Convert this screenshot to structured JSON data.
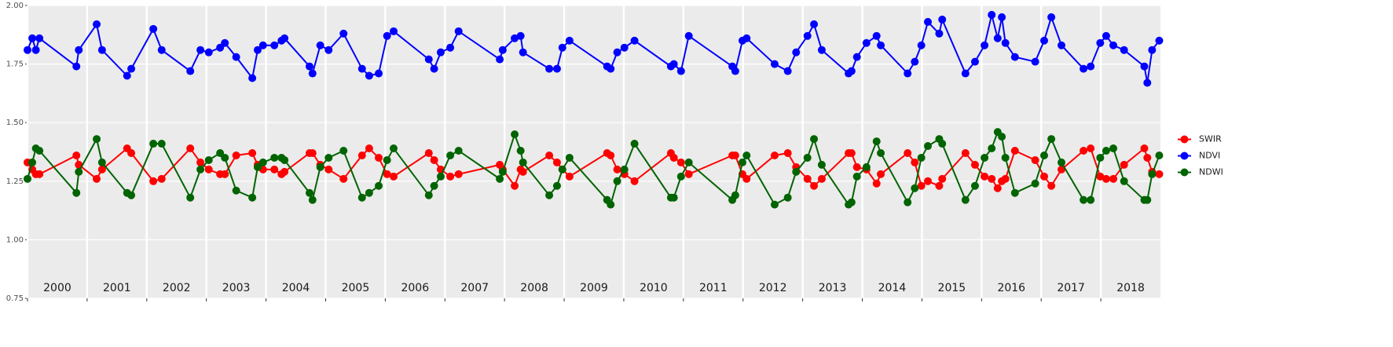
{
  "chart_data": {
    "type": "line",
    "x": [
      2000.0,
      2000.08,
      2000.14,
      2000.2,
      2000.82,
      2000.86,
      2001.16,
      2001.25,
      2001.67,
      2001.74,
      2002.11,
      2002.25,
      2002.73,
      2002.9,
      2003.04,
      2003.23,
      2003.31,
      2003.5,
      2003.77,
      2003.86,
      2003.95,
      2004.14,
      2004.26,
      2004.31,
      2004.73,
      2004.78,
      2004.91,
      2005.05,
      2005.3,
      2005.61,
      2005.73,
      2005.89,
      2006.03,
      2006.14,
      2006.73,
      2006.82,
      2006.93,
      2007.09,
      2007.23,
      2007.92,
      2007.97,
      2008.17,
      2008.27,
      2008.31,
      2008.75,
      2008.88,
      2008.97,
      2009.09,
      2009.72,
      2009.78,
      2009.89,
      2010.01,
      2010.18,
      2010.79,
      2010.84,
      2010.96,
      2011.09,
      2011.82,
      2011.87,
      2011.99,
      2012.06,
      2012.53,
      2012.75,
      2012.89,
      2013.08,
      2013.19,
      2013.32,
      2013.77,
      2013.82,
      2013.91,
      2014.07,
      2014.24,
      2014.31,
      2014.76,
      2014.88,
      2014.99,
      2015.1,
      2015.29,
      2015.34,
      2015.73,
      2015.89,
      2016.05,
      2016.17,
      2016.27,
      2016.34,
      2016.4,
      2016.56,
      2016.9,
      2017.05,
      2017.17,
      2017.34,
      2017.71,
      2017.83,
      2017.99,
      2018.09,
      2018.21,
      2018.39,
      2018.73,
      2018.78,
      2018.86,
      2018.98
    ],
    "series": [
      {
        "name": "SWIR",
        "color": "#ff0000",
        "values": [
          1.33,
          1.3,
          1.28,
          1.28,
          1.36,
          1.32,
          1.26,
          1.3,
          1.39,
          1.37,
          1.25,
          1.26,
          1.39,
          1.33,
          1.3,
          1.28,
          1.28,
          1.36,
          1.37,
          1.32,
          1.3,
          1.3,
          1.28,
          1.29,
          1.37,
          1.37,
          1.32,
          1.3,
          1.26,
          1.36,
          1.39,
          1.35,
          1.28,
          1.27,
          1.37,
          1.34,
          1.3,
          1.27,
          1.28,
          1.32,
          1.3,
          1.23,
          1.3,
          1.29,
          1.36,
          1.33,
          1.3,
          1.27,
          1.37,
          1.36,
          1.3,
          1.28,
          1.25,
          1.37,
          1.35,
          1.33,
          1.28,
          1.36,
          1.36,
          1.28,
          1.26,
          1.36,
          1.37,
          1.31,
          1.26,
          1.23,
          1.26,
          1.37,
          1.37,
          1.31,
          1.3,
          1.24,
          1.28,
          1.37,
          1.33,
          1.23,
          1.25,
          1.23,
          1.26,
          1.37,
          1.32,
          1.27,
          1.26,
          1.22,
          1.25,
          1.26,
          1.38,
          1.34,
          1.27,
          1.23,
          1.3,
          1.38,
          1.39,
          1.27,
          1.26,
          1.26,
          1.32,
          1.39,
          1.35,
          1.29,
          1.28
        ]
      },
      {
        "name": "NDVI",
        "color": "#0000ff",
        "values": [
          1.81,
          1.86,
          1.81,
          1.86,
          1.74,
          1.81,
          1.92,
          1.81,
          1.7,
          1.73,
          1.9,
          1.81,
          1.72,
          1.81,
          1.8,
          1.82,
          1.84,
          1.78,
          1.69,
          1.81,
          1.83,
          1.83,
          1.85,
          1.86,
          1.74,
          1.71,
          1.83,
          1.81,
          1.88,
          1.73,
          1.7,
          1.71,
          1.87,
          1.89,
          1.77,
          1.73,
          1.8,
          1.82,
          1.89,
          1.77,
          1.81,
          1.86,
          1.87,
          1.8,
          1.73,
          1.73,
          1.82,
          1.85,
          1.74,
          1.73,
          1.8,
          1.82,
          1.85,
          1.74,
          1.75,
          1.72,
          1.87,
          1.74,
          1.72,
          1.85,
          1.86,
          1.75,
          1.72,
          1.8,
          1.87,
          1.92,
          1.81,
          1.71,
          1.72,
          1.78,
          1.84,
          1.87,
          1.83,
          1.71,
          1.76,
          1.83,
          1.93,
          1.88,
          1.94,
          1.71,
          1.76,
          1.83,
          1.96,
          1.86,
          1.95,
          1.84,
          1.78,
          1.76,
          1.85,
          1.95,
          1.83,
          1.73,
          1.74,
          1.84,
          1.87,
          1.83,
          1.81,
          1.74,
          1.67,
          1.81,
          1.85
        ]
      },
      {
        "name": "NDWI",
        "color": "#006400",
        "values": [
          1.26,
          1.33,
          1.39,
          1.38,
          1.2,
          1.29,
          1.43,
          1.33,
          1.2,
          1.19,
          1.41,
          1.41,
          1.18,
          1.3,
          1.34,
          1.37,
          1.35,
          1.21,
          1.18,
          1.31,
          1.33,
          1.35,
          1.35,
          1.34,
          1.2,
          1.17,
          1.31,
          1.35,
          1.38,
          1.18,
          1.2,
          1.23,
          1.34,
          1.39,
          1.19,
          1.23,
          1.27,
          1.36,
          1.38,
          1.26,
          1.29,
          1.45,
          1.38,
          1.33,
          1.19,
          1.23,
          1.3,
          1.35,
          1.17,
          1.15,
          1.25,
          1.3,
          1.41,
          1.18,
          1.18,
          1.27,
          1.33,
          1.17,
          1.19,
          1.33,
          1.36,
          1.15,
          1.18,
          1.29,
          1.35,
          1.43,
          1.32,
          1.15,
          1.16,
          1.27,
          1.31,
          1.42,
          1.37,
          1.16,
          1.22,
          1.35,
          1.4,
          1.43,
          1.41,
          1.17,
          1.23,
          1.35,
          1.39,
          1.46,
          1.44,
          1.35,
          1.2,
          1.24,
          1.36,
          1.43,
          1.33,
          1.17,
          1.17,
          1.35,
          1.38,
          1.39,
          1.25,
          1.17,
          1.17,
          1.28,
          1.36
        ]
      }
    ],
    "xlim": [
      2000,
      2019
    ],
    "xticks": [
      2000,
      2001,
      2002,
      2003,
      2004,
      2005,
      2006,
      2007,
      2008,
      2009,
      2010,
      2011,
      2012,
      2013,
      2014,
      2015,
      2016,
      2017,
      2018
    ],
    "ylim": [
      0.75,
      2.0
    ],
    "yticks": [
      0.75,
      {
        "value": 1,
        "label": "1.00"
      },
      1.25,
      {
        "value": 1.5,
        "label": "1.50"
      },
      1.75,
      {
        "value": 2,
        "label": "2.00"
      }
    ],
    "grid": true,
    "legend": "right"
  }
}
